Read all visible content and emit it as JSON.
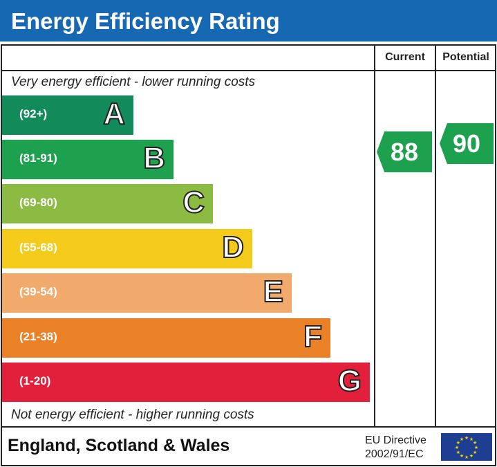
{
  "header": {
    "title": "Energy Efficiency Rating"
  },
  "columns": {
    "current": "Current",
    "potential": "Potential"
  },
  "notes": {
    "top": "Very energy efficient - lower running costs",
    "bottom": "Not energy efficient - higher running costs"
  },
  "chart_data": {
    "type": "bar",
    "title": "Energy Efficiency Rating",
    "bands": [
      {
        "letter": "A",
        "range": "(92+)",
        "color": "#138a5a"
      },
      {
        "letter": "B",
        "range": "(81-91)",
        "color": "#1ea14f"
      },
      {
        "letter": "C",
        "range": "(69-80)",
        "color": "#8cbb43"
      },
      {
        "letter": "D",
        "range": "(55-68)",
        "color": "#f5cb1b"
      },
      {
        "letter": "E",
        "range": "(39-54)",
        "color": "#f1a96c"
      },
      {
        "letter": "F",
        "range": "(21-38)",
        "color": "#eb8127"
      },
      {
        "letter": "G",
        "range": "(1-20)",
        "color": "#e2203c"
      }
    ],
    "current": {
      "value": "88",
      "band": "B",
      "color": "#1ea14f"
    },
    "potential": {
      "value": "90",
      "band": "B",
      "color": "#1ea14f"
    }
  },
  "footer": {
    "region": "England, Scotland & Wales",
    "directive_line1": "EU Directive",
    "directive_line2": "2002/91/EC"
  }
}
